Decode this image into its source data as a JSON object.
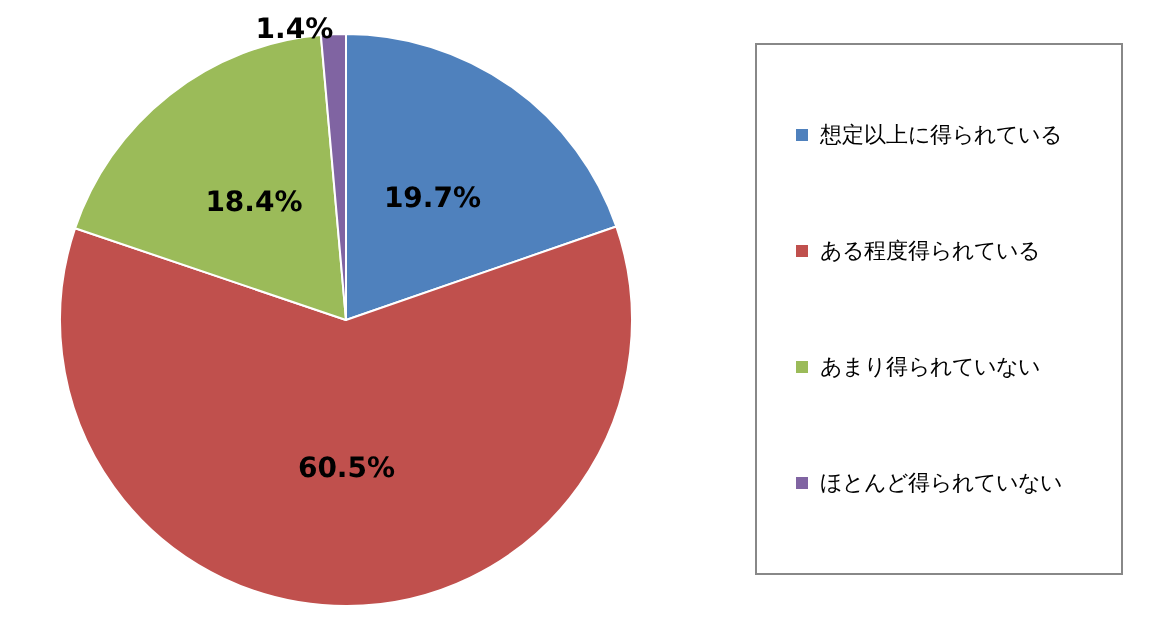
{
  "chart_data": {
    "type": "pie",
    "categories": [
      "想定以上に得られている",
      "ある程度得られている",
      "あまり得られていない",
      "ほとんど得られていない"
    ],
    "values": [
      19.7,
      60.5,
      18.4,
      1.4
    ],
    "colors": [
      "#4f81bd",
      "#c0504d",
      "#9bbb59",
      "#8064a2"
    ],
    "value_labels": [
      "19.7%",
      "60.5%",
      "18.4%",
      "1.4%"
    ],
    "legend": "right"
  }
}
